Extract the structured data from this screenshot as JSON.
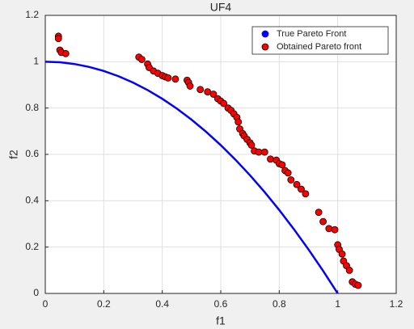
{
  "chart_data": {
    "type": "scatter",
    "title": "UF4",
    "x_label": "f1",
    "y_label": "f2",
    "xlim": [
      0,
      1.2
    ],
    "ylim": [
      0,
      1.2
    ],
    "xticks": [
      0,
      0.2,
      0.4,
      0.6,
      0.8,
      1,
      1.2
    ],
    "yticks": [
      0,
      0.2,
      0.4,
      0.6,
      0.8,
      1,
      1.2
    ],
    "grid": true,
    "legend": "northeast",
    "series": [
      {
        "name": "True Pareto Front",
        "type": "line",
        "color": "#0000ff",
        "x": [
          0,
          0.05,
          0.1,
          0.15,
          0.2,
          0.25,
          0.3,
          0.35,
          0.4,
          0.45,
          0.5,
          0.55,
          0.6,
          0.65,
          0.7,
          0.75,
          0.8,
          0.85,
          0.9,
          0.95,
          1
        ],
        "values": [
          1,
          0.9975,
          0.99,
          0.9775,
          0.96,
          0.9375,
          0.91,
          0.8775,
          0.84,
          0.7975,
          0.75,
          0.6975,
          0.64,
          0.5775,
          0.51,
          0.4375,
          0.36,
          0.2775,
          0.19,
          0.0975,
          0
        ]
      },
      {
        "name": "Obtained Pareto front",
        "type": "scatter",
        "color": "#ff0000",
        "x": [
          0.045,
          0.045,
          0.05,
          0.055,
          0.07,
          0.32,
          0.33,
          0.35,
          0.355,
          0.37,
          0.385,
          0.4,
          0.41,
          0.42,
          0.445,
          0.485,
          0.49,
          0.495,
          0.53,
          0.555,
          0.575,
          0.59,
          0.6,
          0.61,
          0.625,
          0.635,
          0.645,
          0.655,
          0.66,
          0.665,
          0.675,
          0.68,
          0.69,
          0.7,
          0.705,
          0.715,
          0.73,
          0.75,
          0.77,
          0.79,
          0.8,
          0.81,
          0.82,
          0.83,
          0.84,
          0.86,
          0.875,
          0.89,
          0.935,
          0.95,
          0.97,
          0.99,
          1.0,
          1.005,
          1.015,
          1.02,
          1.03,
          1.04,
          1.05,
          1.06,
          1.07
        ],
        "values": [
          1.11,
          1.1,
          1.05,
          1.04,
          1.035,
          1.02,
          1.01,
          0.99,
          0.975,
          0.96,
          0.95,
          0.94,
          0.935,
          0.93,
          0.925,
          0.92,
          0.91,
          0.895,
          0.88,
          0.87,
          0.86,
          0.84,
          0.83,
          0.82,
          0.8,
          0.79,
          0.775,
          0.76,
          0.74,
          0.71,
          0.69,
          0.68,
          0.665,
          0.65,
          0.64,
          0.615,
          0.61,
          0.61,
          0.58,
          0.575,
          0.56,
          0.555,
          0.53,
          0.52,
          0.49,
          0.47,
          0.45,
          0.43,
          0.35,
          0.31,
          0.28,
          0.275,
          0.21,
          0.19,
          0.17,
          0.14,
          0.12,
          0.1,
          0.05,
          0.04,
          0.035
        ]
      }
    ]
  }
}
